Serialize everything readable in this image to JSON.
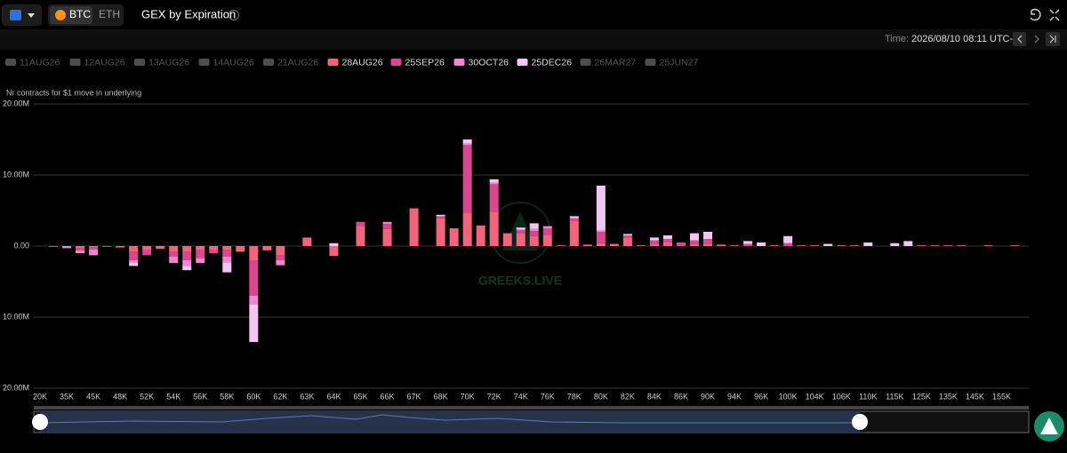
{
  "ui": {
    "coins": [
      "BTC",
      "ETH"
    ],
    "title": "GEX by Expiration",
    "time_label": "Time:",
    "time": "2026/08/10 08:11 UTC-3",
    "watermark": "GREEKS.LIVE"
  },
  "chart_data": {
    "type": "bar",
    "stacked": true,
    "y_label": "Nr contracts for $1 move in underlying",
    "ylim": [
      -20,
      20
    ],
    "yticks": [
      {
        "value": 20,
        "label": "20.00M"
      },
      {
        "value": 10,
        "label": "10.00M"
      },
      {
        "value": 0,
        "label": "0.00"
      },
      {
        "value": -10,
        "label": "10.00M"
      },
      {
        "value": -20,
        "label": "20.00M"
      }
    ],
    "grid": true,
    "categories": [
      "20K",
      null,
      "35K",
      null,
      "45K",
      null,
      "48K",
      null,
      "52K",
      null,
      "54K",
      null,
      "56K",
      null,
      "58K",
      null,
      "60K",
      null,
      "62K",
      null,
      "63K",
      null,
      "64K",
      null,
      "65K",
      null,
      "66K",
      null,
      "67K",
      null,
      "68K",
      null,
      "70K",
      null,
      "72K",
      null,
      "74K",
      null,
      "76K",
      null,
      "78K",
      null,
      "80K",
      null,
      "82K",
      null,
      "84K",
      null,
      "86K",
      null,
      "90K",
      null,
      "94K",
      null,
      "96K",
      null,
      "100K",
      null,
      "104K",
      null,
      "106K",
      null,
      "110K",
      null,
      "115K",
      null,
      "125K",
      null,
      "135K",
      null,
      "145K",
      null,
      "155K",
      null
    ],
    "series": [
      {
        "name": "28AUG26",
        "color": "#f2637c",
        "values": [
          0,
          -0.1,
          0,
          -0.3,
          -0.2,
          -0.1,
          -0.2,
          -0.8,
          -0.5,
          -0.4,
          -0.8,
          -0.8,
          -0.5,
          -0.5,
          -0.6,
          -0.8,
          -2.0,
          -0.6,
          -1.3,
          0,
          1.2,
          0,
          -1.4,
          0,
          2.8,
          0,
          2.4,
          0,
          5.3,
          0,
          3.9,
          2.5,
          4.7,
          2.9,
          4.8,
          1.8,
          1.8,
          1.4,
          1.5,
          0.1,
          3.6,
          0.2,
          0.4,
          0.3,
          1.2,
          0.1,
          0.3,
          0.5,
          0,
          0.3,
          0.3,
          0.2,
          0.1,
          0,
          0,
          0.1,
          0,
          0.1,
          0.1,
          0,
          0.1,
          0.1,
          0,
          0,
          0,
          0,
          0.1,
          0.1,
          0.1,
          0.1,
          0,
          0.1,
          0,
          0.1
        ]
      },
      {
        "name": "25SEP26",
        "color": "#d9488f",
        "values": [
          0,
          0,
          0,
          -0.3,
          -0.3,
          0,
          0,
          -1.2,
          -0.8,
          0,
          -0.7,
          -1.2,
          -1.2,
          -0.5,
          -0.9,
          0,
          -5.0,
          0,
          -0.7,
          0,
          0,
          0,
          0,
          0,
          0.6,
          0,
          0.7,
          0,
          0,
          0,
          0.3,
          0,
          9.5,
          0,
          3.9,
          0,
          0.5,
          0.7,
          1.0,
          0,
          0.3,
          0,
          1.6,
          0,
          0.3,
          0,
          0.5,
          0.5,
          0.5,
          0.5,
          0.7,
          0,
          0,
          0.3,
          0,
          0,
          0.4,
          0,
          0,
          0,
          0,
          0,
          0,
          0,
          0,
          0,
          0,
          0,
          0,
          0,
          0,
          0,
          0,
          0
        ]
      },
      {
        "name": "30OCT26",
        "color": "#ef86d2",
        "values": [
          0,
          0,
          -0.3,
          -0.4,
          -0.8,
          0,
          0,
          -0.3,
          0,
          0,
          -0.9,
          -0.8,
          -0.7,
          0,
          -0.8,
          0,
          -1.2,
          0,
          -0.7,
          0,
          0,
          0,
          0,
          0,
          0,
          0,
          0.3,
          0,
          0,
          0,
          0,
          0,
          0.2,
          0,
          0.2,
          0,
          0,
          0.3,
          0.3,
          0,
          0,
          0,
          0.2,
          0,
          0,
          0,
          0,
          0,
          0,
          0,
          0,
          0,
          0,
          0,
          0,
          0,
          0,
          0,
          0,
          0,
          0,
          0,
          0,
          0,
          0,
          0,
          0,
          0,
          0,
          0,
          0,
          0,
          0,
          0
        ]
      },
      {
        "name": "25DEC26",
        "color": "#f1c6f2",
        "values": [
          0,
          0,
          0,
          0,
          0,
          0,
          0,
          -0.5,
          0,
          0,
          0,
          -0.6,
          0,
          0,
          -1.4,
          0,
          -5.3,
          0,
          0,
          0,
          0,
          0,
          0.4,
          0,
          0,
          0,
          0,
          0,
          0,
          0,
          0.2,
          0,
          0.6,
          0,
          0.5,
          0,
          0.3,
          0.8,
          0,
          0,
          0.3,
          0,
          6.3,
          0,
          0.2,
          0,
          0.4,
          0.5,
          0,
          1.0,
          1.0,
          0,
          0,
          0.4,
          0.5,
          0,
          1.0,
          0,
          0,
          0.3,
          0,
          0,
          0.5,
          0,
          0.4,
          0.7,
          0,
          0,
          0,
          0,
          0,
          0,
          0,
          0
        ]
      }
    ],
    "hidden_series": [
      {
        "name": "11AUG26",
        "color": "#4d4d4d"
      },
      {
        "name": "12AUG26",
        "color": "#4d4d4d"
      },
      {
        "name": "13AUG26",
        "color": "#4d4d4d"
      },
      {
        "name": "14AUG26",
        "color": "#4d4d4d"
      },
      {
        "name": "21AUG26",
        "color": "#4d4d4d"
      },
      {
        "name": "26MAR27",
        "color": "#4d4d4d"
      },
      {
        "name": "25JUN27",
        "color": "#4d4d4d"
      }
    ]
  }
}
